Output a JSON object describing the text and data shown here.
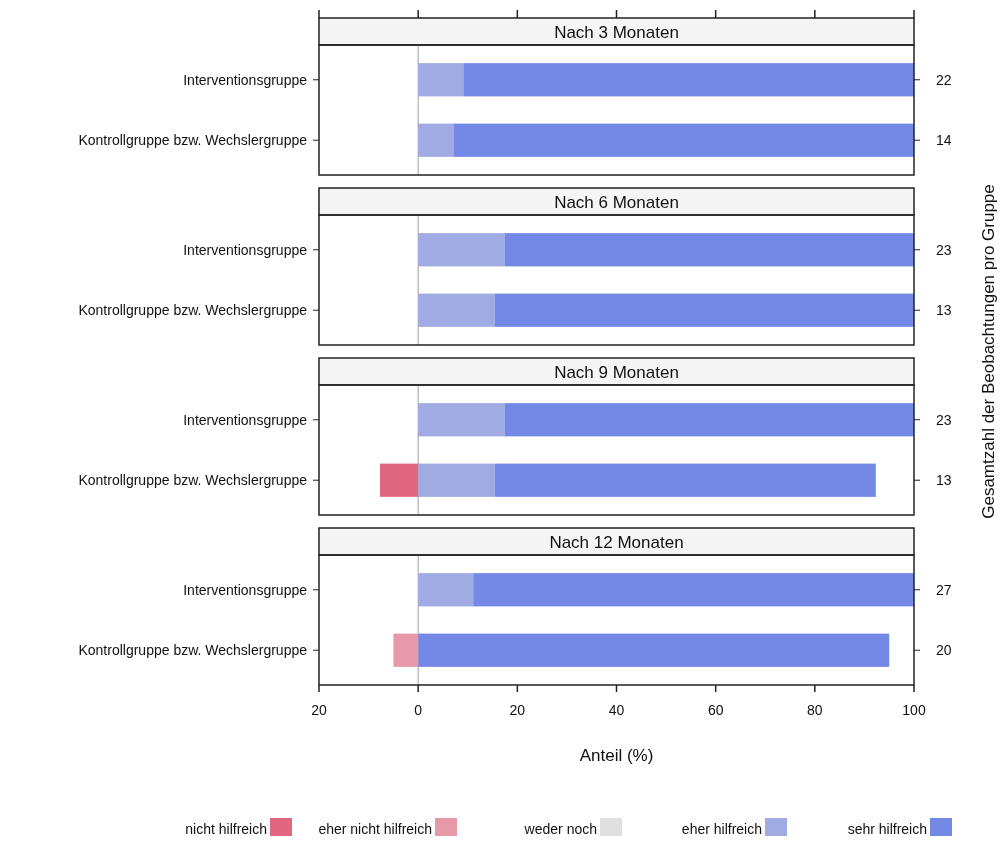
{
  "chart_data": [
    {
      "type": "bar",
      "title": "Nach 3 Monaten",
      "orientation": "horizontal",
      "stacked": true,
      "categories": [
        "Interventionsgruppe",
        "Kontrollgruppe bzw. Wechslergruppe"
      ],
      "series": [
        {
          "color": "#a0abe3",
          "values": [
            9.1,
            7.1
          ]
        },
        {
          "color": "#7489e5",
          "values": [
            90.9,
            92.9
          ]
        }
      ],
      "xlim": [
        -20,
        100
      ],
      "xticks": [
        {
          "value": -20,
          "label": null
        },
        {
          "value": 0,
          "label": null
        },
        {
          "value": 20,
          "label": null
        },
        {
          "value": 40,
          "label": null
        },
        {
          "value": 60,
          "label": null
        },
        {
          "value": 80,
          "label": null
        },
        {
          "value": 100,
          "label": null
        }
      ],
      "tick_labels": "y",
      "ref_lines": [
        {
          "axis": "x",
          "value": 0,
          "color": "#a0a0a0"
        }
      ],
      "annotations": [
        "22",
        "14"
      ],
      "y2label": "Gesamtzahl der Beobachtungen pro Gruppe",
      "legend": false
    },
    {
      "type": "bar",
      "title": "Nach 6 Monaten",
      "orientation": "horizontal",
      "stacked": true,
      "categories": [
        "Interventionsgruppe",
        "Kontrollgruppe bzw. Wechslergruppe"
      ],
      "series": [
        {
          "color": "#a0abe3",
          "values": [
            17.4,
            15.4
          ]
        },
        {
          "color": "#7489e5",
          "values": [
            82.6,
            84.6
          ]
        }
      ],
      "xlim": [
        -20,
        100
      ],
      "tick_labels": "y",
      "ref_lines": [
        {
          "axis": "x",
          "value": 0,
          "color": "#a0a0a0"
        }
      ],
      "annotations": [
        "23",
        "13"
      ],
      "legend": false
    },
    {
      "type": "bar",
      "title": "Nach 9 Monaten",
      "orientation": "horizontal",
      "stacked": true,
      "categories": [
        "Interventionsgruppe",
        "Kontrollgruppe bzw. Wechslergruppe"
      ],
      "series": [
        {
          "color": "#e0677f",
          "values": [
            0,
            -7.7
          ]
        },
        {
          "color": "#a0abe3",
          "values": [
            17.4,
            15.4
          ]
        },
        {
          "color": "#7489e5",
          "values": [
            82.6,
            76.9
          ]
        }
      ],
      "xlim": [
        -20,
        100
      ],
      "tick_labels": "y",
      "ref_lines": [
        {
          "axis": "x",
          "value": 0,
          "color": "#a0a0a0"
        }
      ],
      "annotations": [
        "23",
        "13"
      ],
      "legend": false
    },
    {
      "type": "bar",
      "title": "Nach 12 Monaten",
      "orientation": "horizontal",
      "stacked": true,
      "categories": [
        "Interventionsgruppe",
        "Kontrollgruppe bzw. Wechslergruppe"
      ],
      "series": [
        {
          "name": "nicht hilfreich",
          "color": "#e0677f",
          "values": [
            0,
            0
          ]
        },
        {
          "name": "eher nicht hilfreich",
          "color": "#e799a9",
          "values": [
            0,
            -5
          ]
        },
        {
          "name": "weder noch",
          "color": "#e0e0e0",
          "values": [
            0,
            0
          ]
        },
        {
          "name": "eher hilfreich",
          "color": "#a0abe3",
          "values": [
            11.1,
            0
          ]
        },
        {
          "name": "sehr hilfreich",
          "color": "#7489e5",
          "values": [
            88.9,
            95
          ]
        }
      ],
      "xlim": [
        -20,
        100
      ],
      "xticks": [
        {
          "value": -20,
          "label": "20"
        },
        0,
        20,
        40,
        60,
        80,
        100
      ],
      "xlabel": "Anteil (%)",
      "ref_lines": [
        {
          "axis": "x",
          "value": 0,
          "color": "#a0a0a0"
        }
      ],
      "annotations": [
        "27",
        "20"
      ],
      "legend": "bottom"
    }
  ]
}
